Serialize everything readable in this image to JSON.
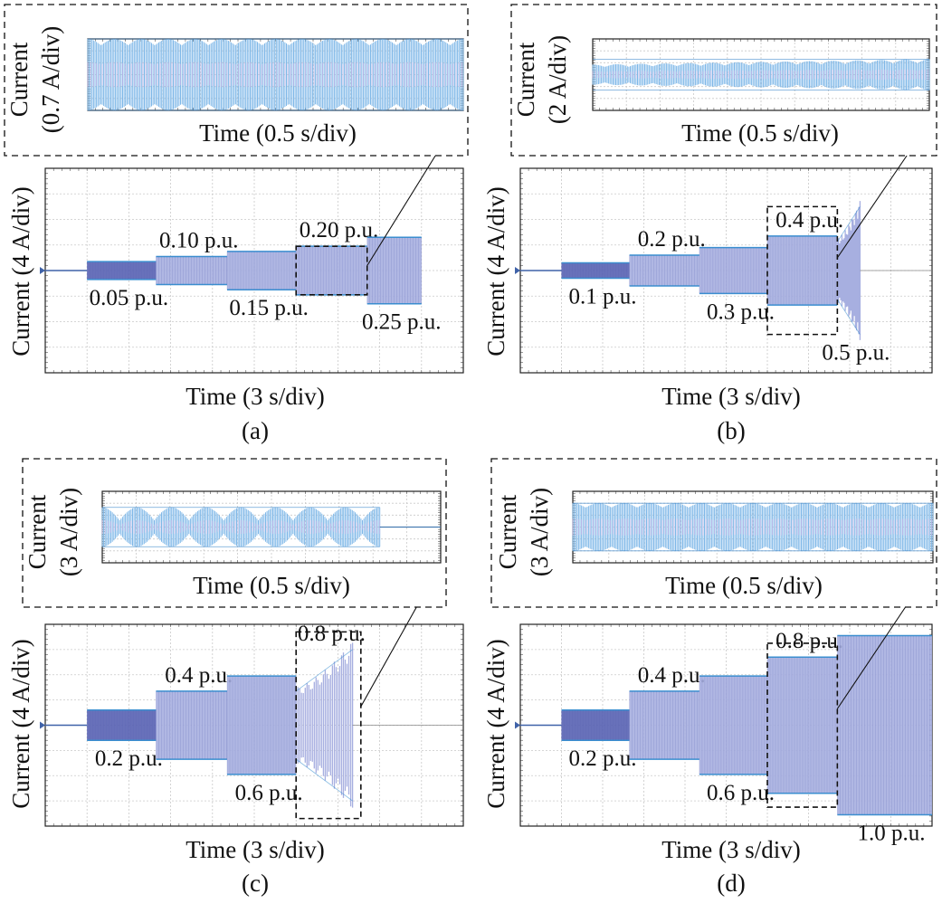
{
  "panels": [
    {
      "id": "a",
      "caption": "(a)",
      "main": {
        "ylabel": "Current (4 A/div)",
        "xlabel": "Time (3 s/div)"
      },
      "inset": {
        "ylabel_line1": "Current",
        "ylabel_line2": "(0.7 A/div)",
        "xlabel": "Time (0.5 s/div)",
        "amp_divs": 3.0,
        "end_div": 10,
        "pattern": "beat-steady"
      },
      "steps": [
        {
          "label": "0.05 p.u.",
          "start_div": 1.0,
          "amp_divs": 0.35,
          "label_side": "below"
        },
        {
          "label": "0.10 p.u.",
          "start_div": 2.65,
          "amp_divs": 0.55,
          "label_side": "above"
        },
        {
          "label": "0.15 p.u.",
          "start_div": 4.35,
          "amp_divs": 0.75,
          "label_side": "below"
        },
        {
          "label": "0.20 p.u.",
          "start_div": 6.0,
          "amp_divs": 0.95,
          "label_side": "above"
        },
        {
          "label": "0.25 p.u.",
          "start_div": 7.7,
          "amp_divs": 1.3,
          "label_side": "below"
        }
      ],
      "end_div": 9.0,
      "zoom_box": {
        "div_start": 6.0,
        "div_end": 7.7,
        "amp_divs": 0.95
      }
    },
    {
      "id": "b",
      "caption": "(b)",
      "main": {
        "ylabel": "Current (4 A/div)",
        "xlabel": "Time (3 s/div)"
      },
      "inset": {
        "ylabel_line1": "Current",
        "ylabel_line2": "(2 A/div)",
        "xlabel": "Time (0.5 s/div)",
        "amp_divs": 1.3,
        "end_div": 10,
        "pattern": "beat-growing"
      },
      "steps": [
        {
          "label": "0.1 p.u.",
          "start_div": 1.0,
          "amp_divs": 0.3,
          "label_side": "below"
        },
        {
          "label": "0.2 p.u.",
          "start_div": 2.65,
          "amp_divs": 0.6,
          "label_side": "above"
        },
        {
          "label": "0.3 p.u.",
          "start_div": 4.35,
          "amp_divs": 0.9,
          "label_side": "below"
        },
        {
          "label": "0.4 p.u.",
          "start_div": 6.0,
          "amp_divs": 1.35,
          "label_side": "above"
        },
        {
          "label": "0.5 p.u.",
          "start_div": 7.7,
          "amp_divs": 2.5,
          "label_side": "below",
          "unstable": true
        }
      ],
      "end_div": 8.25,
      "zoom_box": {
        "div_start": 6.0,
        "div_end": 7.7,
        "amp_divs": 2.5
      }
    },
    {
      "id": "c",
      "caption": "(c)",
      "main": {
        "ylabel": "Current (4 A/div)",
        "xlabel": "Time (3 s/div)"
      },
      "inset": {
        "ylabel_line1": "Current",
        "ylabel_line2": "(3 A/div)",
        "xlabel": "Time (0.5 s/div)",
        "amp_divs": 1.65,
        "end_div": 8.2,
        "pattern": "beat-collapse"
      },
      "steps": [
        {
          "label": "0.2 p.u.",
          "start_div": 1.0,
          "amp_divs": 0.6,
          "label_side": "below"
        },
        {
          "label": "0.4 p.u.",
          "start_div": 2.65,
          "amp_divs": 1.35,
          "label_side": "above"
        },
        {
          "label": "0.6 p.u.",
          "start_div": 4.35,
          "amp_divs": 1.95,
          "label_side": "below"
        },
        {
          "label": "0.8 p.u.",
          "start_div": 6.0,
          "amp_divs": 3.0,
          "label_side": "above",
          "unstable": true
        }
      ],
      "end_div": 7.35,
      "zoom_box": {
        "div_start": 6.0,
        "div_end": 7.55,
        "amp_divs": 3.7
      }
    },
    {
      "id": "d",
      "caption": "(d)",
      "main": {
        "ylabel": "Current (4 A/div)",
        "xlabel": "Time (3 s/div)"
      },
      "inset": {
        "ylabel_line1": "Current",
        "ylabel_line2": "(3 A/div)",
        "xlabel": "Time (0.5 s/div)",
        "amp_divs": 2.0,
        "end_div": 10,
        "pattern": "beat-steady"
      },
      "steps": [
        {
          "label": "0.2 p.u.",
          "start_div": 1.0,
          "amp_divs": 0.6,
          "label_side": "below"
        },
        {
          "label": "0.4 p.u.",
          "start_div": 2.65,
          "amp_divs": 1.35,
          "label_side": "above"
        },
        {
          "label": "0.6 p.u.",
          "start_div": 4.35,
          "amp_divs": 1.95,
          "label_side": "below"
        },
        {
          "label": "0.8 p.u.",
          "start_div": 6.0,
          "amp_divs": 2.7,
          "label_side": "above"
        },
        {
          "label": "1.0 p.u.",
          "start_div": 7.7,
          "amp_divs": 3.55,
          "label_side": "below"
        }
      ],
      "end_div": 10.0,
      "zoom_box": {
        "div_start": 6.0,
        "div_end": 7.7,
        "amp_divs": 3.25
      }
    }
  ],
  "colors": {
    "fill": "#a7afe0",
    "dense": "#5862b3",
    "edge": "#3a8fd0",
    "inset_fill": "#7fb8e8",
    "inset_edge": "#2f7fc8",
    "inset_core": "#c9b3e6",
    "baseline": "#3f62a8",
    "grid": "#c9c9c9",
    "marker": "#3f62a8"
  },
  "chart_data": [
    {
      "type": "line",
      "panel": "a",
      "xlabel": "Time (3 s/div)",
      "ylabel": "Current (4 A/div)",
      "series": [
        {
          "x_div": [
            1.0,
            2.65,
            4.35,
            6.0,
            7.7
          ],
          "amplitude_div": [
            0.35,
            0.55,
            0.75,
            0.95,
            1.3
          ],
          "labels": [
            "0.05 p.u.",
            "0.10 p.u.",
            "0.15 p.u.",
            "0.20 p.u.",
            "0.25 p.u."
          ]
        }
      ]
    },
    {
      "type": "line",
      "panel": "b",
      "xlabel": "Time (3 s/div)",
      "ylabel": "Current (4 A/div)",
      "series": [
        {
          "x_div": [
            1.0,
            2.65,
            4.35,
            6.0,
            7.7
          ],
          "amplitude_div": [
            0.3,
            0.6,
            0.9,
            1.35,
            2.5
          ],
          "labels": [
            "0.1 p.u.",
            "0.2 p.u.",
            "0.3 p.u.",
            "0.4 p.u.",
            "0.5 p.u."
          ]
        }
      ]
    },
    {
      "type": "line",
      "panel": "c",
      "xlabel": "Time (3 s/div)",
      "ylabel": "Current (4 A/div)",
      "series": [
        {
          "x_div": [
            1.0,
            2.65,
            4.35,
            6.0
          ],
          "amplitude_div": [
            0.6,
            1.35,
            1.95,
            3.0
          ],
          "labels": [
            "0.2 p.u.",
            "0.4 p.u.",
            "0.6 p.u.",
            "0.8 p.u."
          ]
        }
      ]
    },
    {
      "type": "line",
      "panel": "d",
      "xlabel": "Time (3 s/div)",
      "ylabel": "Current (4 A/div)",
      "series": [
        {
          "x_div": [
            1.0,
            2.65,
            4.35,
            6.0,
            7.7
          ],
          "amplitude_div": [
            0.6,
            1.35,
            1.95,
            2.7,
            3.55
          ],
          "labels": [
            "0.2 p.u.",
            "0.4 p.u.",
            "0.6 p.u.",
            "0.8 p.u.",
            "1.0 p.u."
          ]
        }
      ]
    }
  ]
}
